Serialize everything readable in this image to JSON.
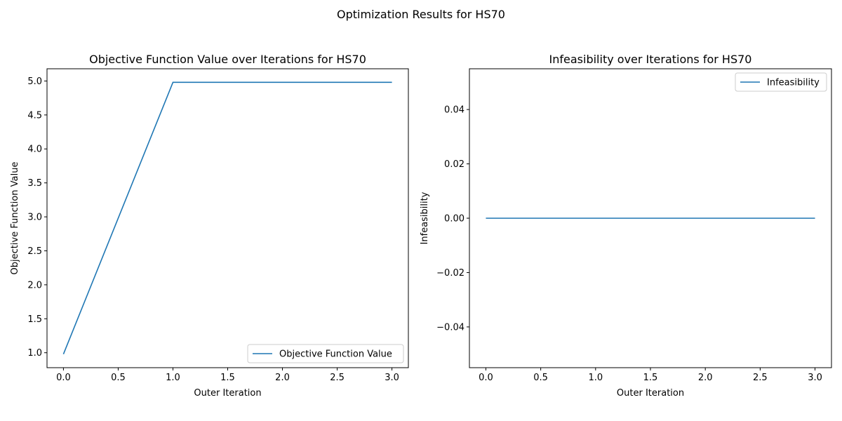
{
  "figure": {
    "title": "Optimization Results for HS70"
  },
  "chart_data": [
    {
      "type": "line",
      "title": "Objective Function Value over Iterations for HS70",
      "xlabel": "Outer Iteration",
      "ylabel": "Objective Function Value",
      "xlim": [
        -0.15,
        3.15
      ],
      "ylim": [
        0.78,
        5.18
      ],
      "xticks": [
        0.0,
        0.5,
        1.0,
        1.5,
        2.0,
        2.5,
        3.0
      ],
      "xtick_labels": [
        "0.0",
        "0.5",
        "1.0",
        "1.5",
        "2.0",
        "2.5",
        "3.0"
      ],
      "yticks": [
        1.0,
        1.5,
        2.0,
        2.5,
        3.0,
        3.5,
        4.0,
        4.5,
        5.0
      ],
      "ytick_labels": [
        "1.0",
        "1.5",
        "2.0",
        "2.5",
        "3.0",
        "3.5",
        "4.0",
        "4.5",
        "5.0"
      ],
      "grid": false,
      "legend": {
        "position": "lower-right",
        "entries": [
          "Objective Function Value"
        ]
      },
      "series": [
        {
          "name": "Objective Function Value",
          "color": "#1f77b4",
          "x": [
            0,
            1,
            2,
            3
          ],
          "y": [
            0.98,
            4.98,
            4.98,
            4.98
          ]
        }
      ]
    },
    {
      "type": "line",
      "title": "Infeasibility over Iterations for HS70",
      "xlabel": "Outer Iteration",
      "ylabel": "Infeasibility",
      "xlim": [
        -0.15,
        3.15
      ],
      "ylim": [
        -0.055,
        0.055
      ],
      "xticks": [
        0.0,
        0.5,
        1.0,
        1.5,
        2.0,
        2.5,
        3.0
      ],
      "xtick_labels": [
        "0.0",
        "0.5",
        "1.0",
        "1.5",
        "2.0",
        "2.5",
        "3.0"
      ],
      "yticks": [
        0.04,
        0.02,
        0.0,
        -0.02,
        -0.04
      ],
      "ytick_labels": [
        "0.04",
        "0.02",
        "0.00",
        "−0.02",
        "−0.04"
      ],
      "grid": false,
      "legend": {
        "position": "upper-right",
        "entries": [
          "Infeasibility"
        ]
      },
      "series": [
        {
          "name": "Infeasibility",
          "color": "#1f77b4",
          "x": [
            0,
            1,
            2,
            3
          ],
          "y": [
            0,
            0,
            0,
            0
          ]
        }
      ]
    }
  ]
}
